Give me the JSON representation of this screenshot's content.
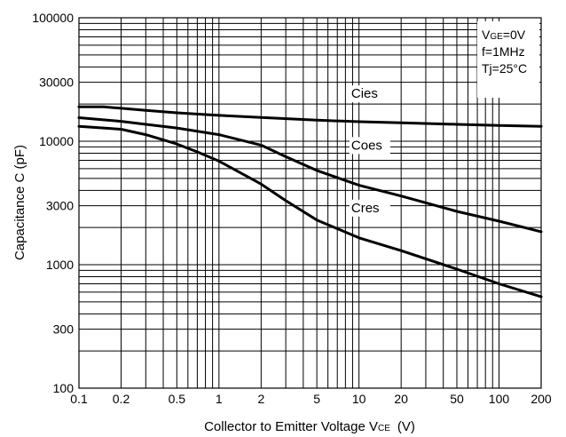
{
  "chart_data": {
    "type": "line",
    "x_scale": "log",
    "y_scale": "log",
    "xlabel_main": "Collector to Emitter Voltage V",
    "xlabel_sub": "CE",
    "xlabel_unit": "(V)",
    "ylabel": "Capacitance C  (pF)",
    "xlim": [
      0.1,
      200
    ],
    "ylim": [
      100,
      100000
    ],
    "grid": true,
    "x_ticks": [
      0.1,
      0.2,
      0.5,
      1,
      2,
      5,
      10,
      20,
      50,
      100,
      200
    ],
    "x_tick_labels": [
      "0.1",
      "0.2",
      "0.5",
      "1",
      "2",
      "5",
      "10",
      "20",
      "50",
      "100",
      "200"
    ],
    "y_ticks": [
      100,
      300,
      1000,
      3000,
      10000,
      30000,
      100000
    ],
    "y_tick_labels": [
      "100",
      "300",
      "1000",
      "3000",
      "10000",
      "30000",
      "100000"
    ],
    "conditions": {
      "vge_main": "V",
      "vge_sub": "GE",
      "vge_value": "=0V",
      "freq": "f=1MHz",
      "temp": "Tj=25°C"
    },
    "series": [
      {
        "name": "Cies",
        "x": [
          0.1,
          0.15,
          0.2,
          0.3,
          0.5,
          1,
          2,
          5,
          10,
          20,
          50,
          100,
          200
        ],
        "values": [
          19000,
          19000,
          18500,
          17800,
          17000,
          16200,
          15600,
          14800,
          14400,
          14100,
          13700,
          13400,
          13200
        ]
      },
      {
        "name": "Coes",
        "x": [
          0.1,
          0.2,
          0.3,
          0.5,
          1,
          2,
          3,
          5,
          10,
          20,
          50,
          100,
          200
        ],
        "values": [
          15500,
          14500,
          13700,
          12800,
          11300,
          9300,
          7500,
          5800,
          4400,
          3600,
          2700,
          2250,
          1850
        ]
      },
      {
        "name": "Cres",
        "x": [
          0.1,
          0.2,
          0.3,
          0.5,
          0.7,
          1,
          2,
          3,
          5,
          10,
          20,
          50,
          100,
          200
        ],
        "values": [
          13200,
          12500,
          11300,
          9500,
          8200,
          6900,
          4500,
          3300,
          2300,
          1650,
          1300,
          920,
          700,
          550
        ]
      }
    ]
  }
}
